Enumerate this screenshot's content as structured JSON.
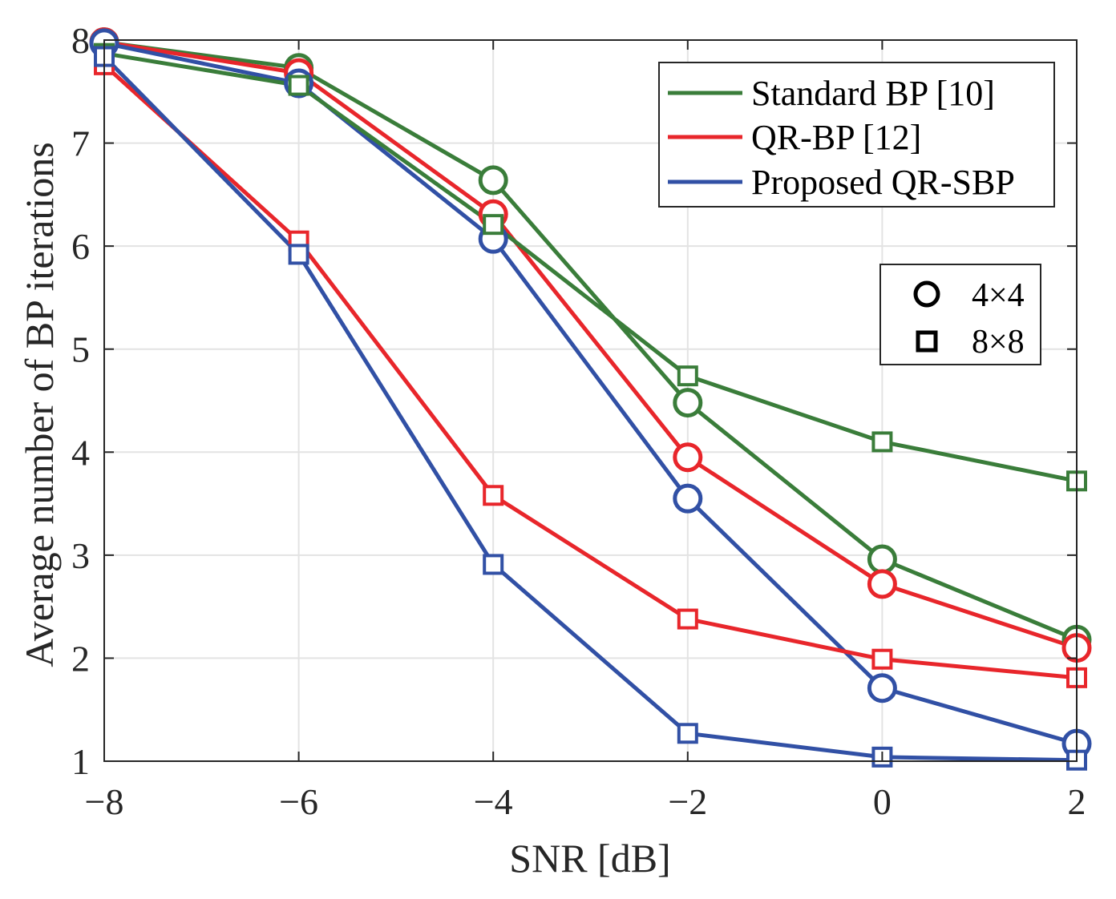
{
  "chart_data": {
    "type": "line",
    "title": "",
    "xlabel": "SNR [dB]",
    "ylabel": "Average number of BP iterations",
    "xlim": [
      -8,
      2
    ],
    "ylim": [
      1,
      8
    ],
    "xticks": [
      -8,
      -6,
      -4,
      -2,
      0,
      2
    ],
    "yticks": [
      1,
      2,
      3,
      4,
      5,
      6,
      7,
      8
    ],
    "xtick_labels": [
      "−8",
      "−6",
      "−4",
      "−2",
      "0",
      "2"
    ],
    "ytick_labels": [
      "1",
      "2",
      "3",
      "4",
      "5",
      "6",
      "7",
      "8"
    ],
    "grid": true,
    "x": [
      -8,
      -6,
      -4,
      -2,
      0,
      2
    ],
    "series": [
      {
        "name": "Standard BP [10]",
        "method": "standard",
        "size": "4×4",
        "marker": "circle",
        "color": "#3a7d3a",
        "values": [
          7.98,
          7.73,
          6.64,
          4.48,
          2.96,
          2.18
        ]
      },
      {
        "name": "QR-BP [12]",
        "method": "qrbp",
        "size": "4×4",
        "marker": "circle",
        "color": "#e8262b",
        "values": [
          7.98,
          7.68,
          6.31,
          3.95,
          2.72,
          2.1
        ]
      },
      {
        "name": "Proposed QR-SBP",
        "method": "qrsbp",
        "size": "4×4",
        "marker": "circle",
        "color": "#3150a5",
        "values": [
          7.97,
          7.58,
          6.07,
          3.55,
          1.71,
          1.17
        ]
      },
      {
        "name": "Standard BP [10]",
        "method": "standard",
        "size": "8×8",
        "marker": "square",
        "color": "#3a7d3a",
        "values": [
          7.87,
          7.56,
          6.21,
          4.74,
          4.1,
          3.72
        ]
      },
      {
        "name": "QR-BP [12]",
        "method": "qrbp",
        "size": "8×8",
        "marker": "square",
        "color": "#e8262b",
        "values": [
          7.76,
          6.05,
          3.58,
          2.38,
          1.99,
          1.81
        ]
      },
      {
        "name": "Proposed QR-SBP",
        "method": "qrsbp",
        "size": "8×8",
        "marker": "square",
        "color": "#3150a5",
        "values": [
          7.84,
          5.92,
          2.91,
          1.27,
          1.04,
          1.01
        ]
      }
    ],
    "legend": {
      "placement": "top-right",
      "entries": [
        {
          "label": "Standard BP [10]",
          "color": "#3a7d3a"
        },
        {
          "label": "QR-BP [12]",
          "color": "#e8262b"
        },
        {
          "label": "Proposed QR-SBP",
          "color": "#3150a5"
        }
      ]
    },
    "marker_legend": {
      "placement": "right",
      "entries": [
        {
          "label": "4×4",
          "marker": "circle"
        },
        {
          "label": "8×8",
          "marker": "square"
        }
      ]
    }
  }
}
